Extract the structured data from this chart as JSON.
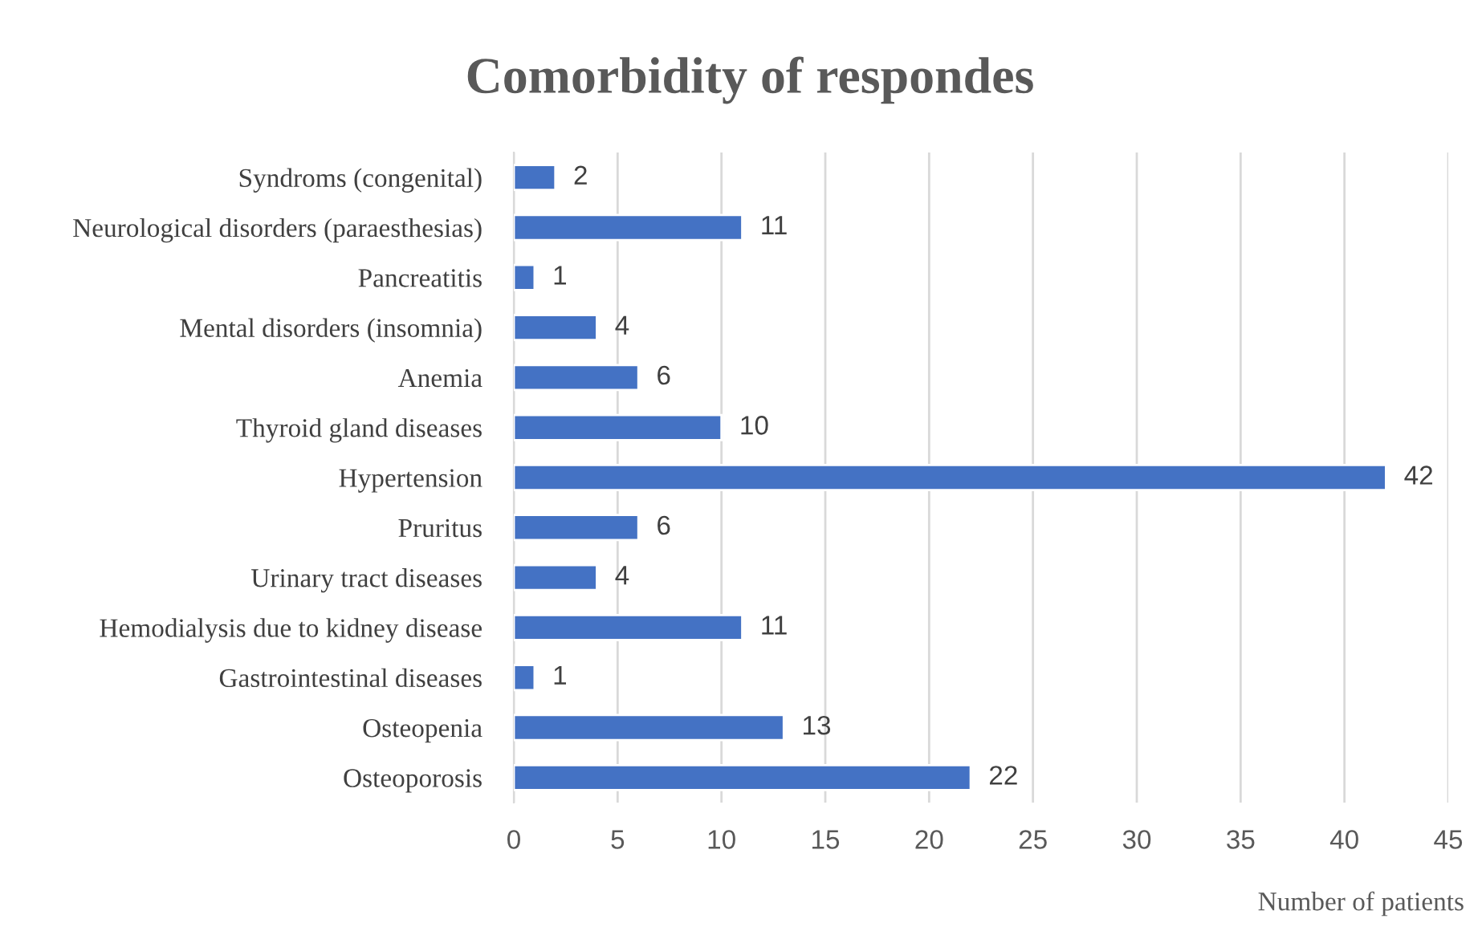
{
  "chart_data": {
    "type": "bar",
    "orientation": "horizontal",
    "title": "Comorbidity of respondes",
    "xlabel": "Number of patients",
    "categories": [
      "Syndroms (congenital)",
      "Neurological disorders (paraesthesias)",
      "Pancreatitis",
      "Mental disorders (insomnia)",
      "Anemia",
      "Thyroid gland diseases",
      "Hypertension",
      "Pruritus",
      "Urinary tract diseases",
      "Hemodialysis due to kidney disease",
      "Gastrointestinal diseases",
      "Osteopenia",
      "Osteoporosis"
    ],
    "values": [
      2,
      11,
      1,
      4,
      6,
      10,
      42,
      6,
      4,
      11,
      1,
      13,
      22
    ],
    "color": "#4472c4",
    "xlim": [
      0,
      45
    ],
    "xticks": [
      0,
      5,
      10,
      15,
      20,
      25,
      30,
      35,
      40,
      45
    ],
    "grid": "x",
    "data_labels": true,
    "legend": false
  }
}
